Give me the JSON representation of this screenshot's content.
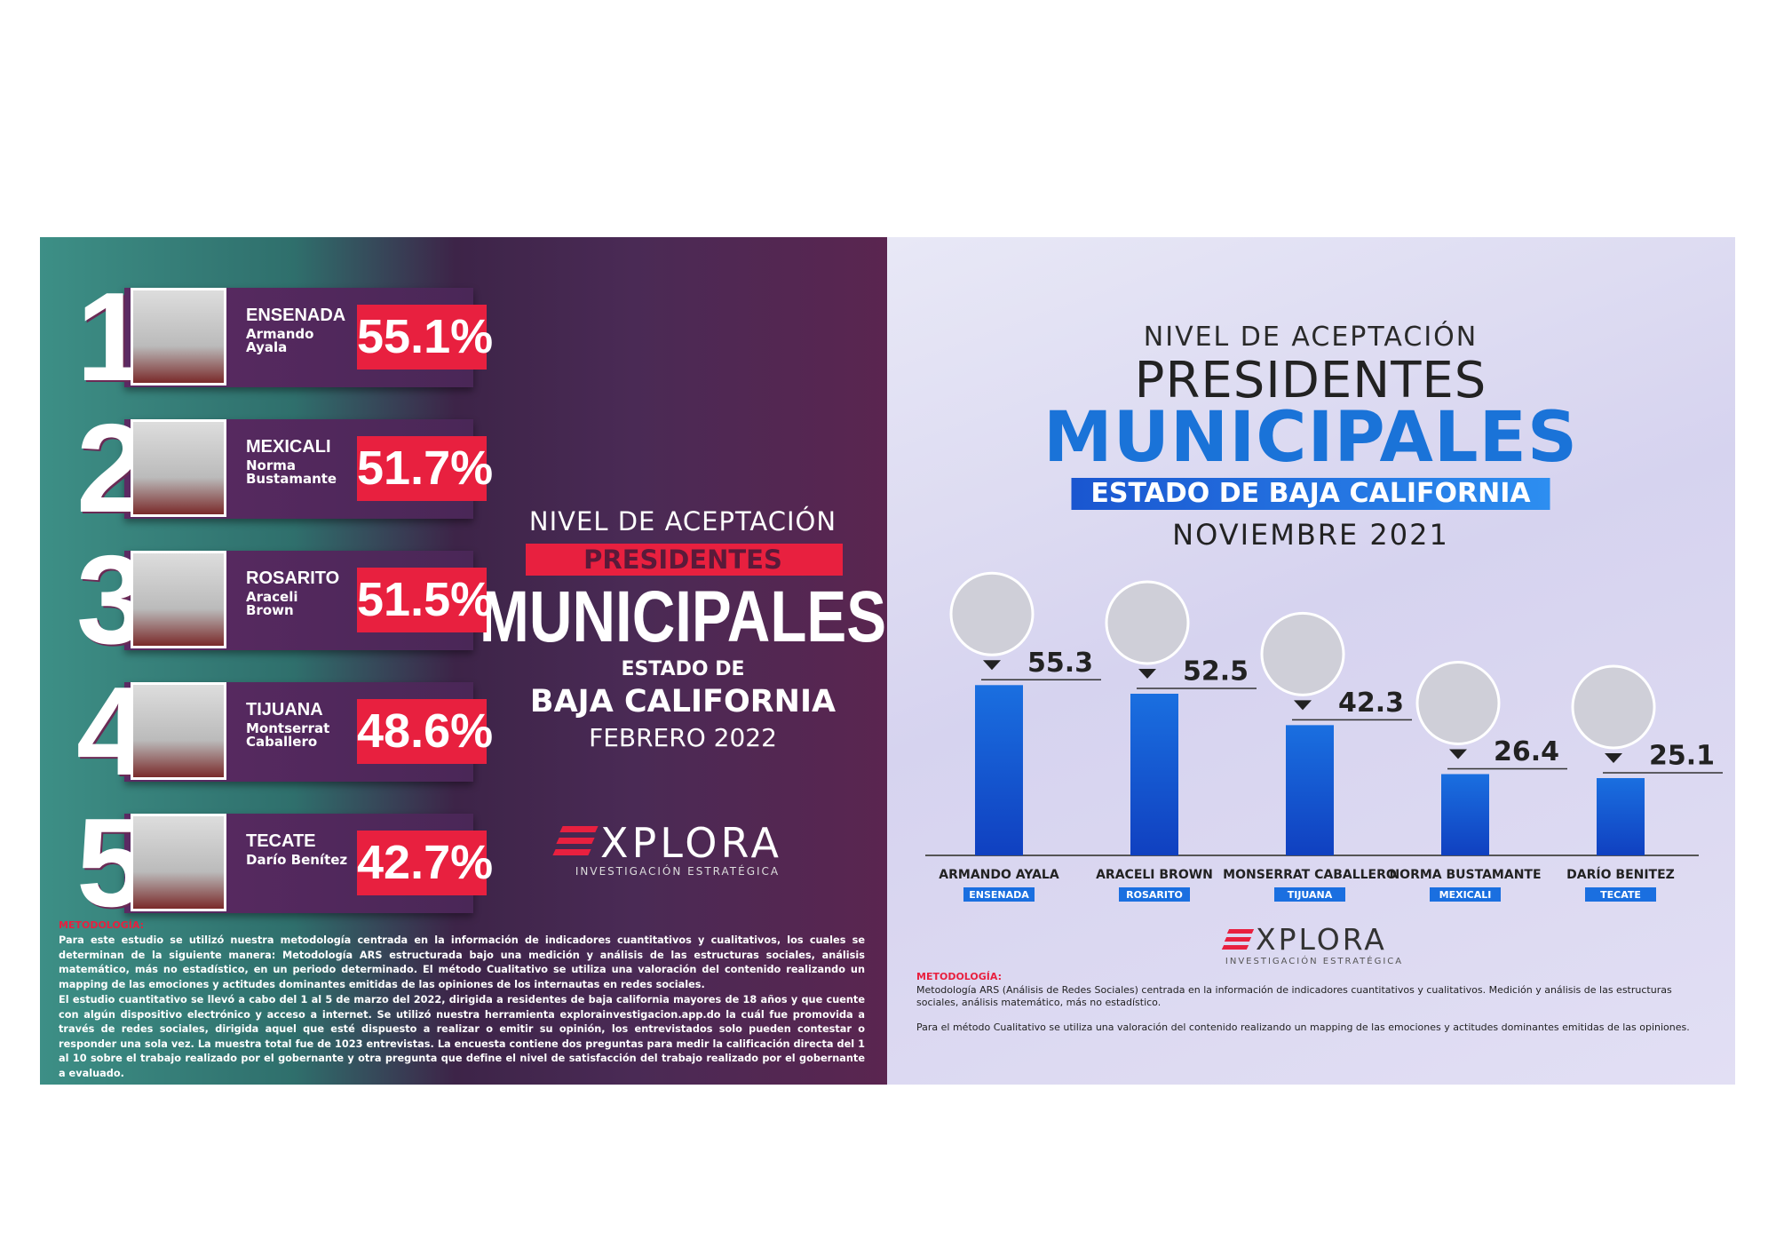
{
  "left_panel": {
    "ranking": [
      {
        "rank": "1",
        "city": "ENSENADA",
        "name": [
          "Armando",
          "Ayala"
        ],
        "value": "55.1%"
      },
      {
        "rank": "2",
        "city": "MEXICALI",
        "name": [
          "Norma",
          "Bustamante"
        ],
        "value": "51.7%"
      },
      {
        "rank": "3",
        "city": "ROSARITO",
        "name": [
          "Araceli",
          "Brown"
        ],
        "value": "51.5%"
      },
      {
        "rank": "4",
        "city": "TIJUANA",
        "name": [
          "Montserrat",
          "Caballero"
        ],
        "value": "48.6%"
      },
      {
        "rank": "5",
        "city": "TECATE",
        "name": [
          "Darío Benítez"
        ],
        "value": "42.7%"
      }
    ],
    "heading": {
      "kicker": "NIVEL DE ACEPTACIÓN",
      "title": "PRESIDENTES",
      "title2": "MUNICIPALES",
      "state_prefix": "ESTADO DE",
      "state": "BAJA CALIFORNIA",
      "date": "FEBRERO 2022"
    },
    "logo": "XPLORA",
    "logo_tagline": "INVESTIGACIÓN ESTRATÉGICA",
    "methodology_label": "METODOLOGÍA:",
    "methodology": [
      "Para este estudio se utilizó nuestra metodología centrada en la información de indicadores cuantitativos y cualitativos, los cuales se determinan de la siguiente manera: Metodología ARS estructurada bajo una medición y análisis de las estructuras sociales, análisis matemático, más no estadístico, en un periodo determinado. El método Cualitativo se utiliza una valoración del contenido realizando un mapping de las emociones y actitudes dominantes emitidas de las opiniones de los internautas en redes sociales.",
      "El estudio cuantitativo se llevó a cabo del 1 al 5 de marzo del 2022, dirigida a residentes de baja california mayores de 18 años y que cuente con algún dispositivo electrónico y acceso a internet. Se utilizó nuestra herramienta explorainvestigacion.app.do la cuál fue promovida a través de redes sociales, dirigida aquel que esté dispuesto a realizar o emitir su opinión, los entrevistados solo pueden contestar o responder una sola vez. La muestra total fue de 1023 entrevistas. La encuesta contiene dos preguntas para medir la calificación directa del 1 al 10 sobre el trabajo realizado por el gobernante y otra pregunta que define el nivel de satisfacción del trabajo realizado por el gobernante a evaluado."
    ]
  },
  "chart_data": {
    "type": "bar",
    "kicker": "NIVEL DE ACEPTACIÓN",
    "title": "PRESIDENTES",
    "title2": "MUNICIPALES",
    "subtitle": "ESTADO DE BAJA CALIFORNIA",
    "date": "NOVIEMBRE 2021",
    "categories": [
      "ARMANDO AYALA",
      "ARACELI BROWN",
      "MONSERRAT CABALLERO",
      "NORMA BUSTAMANTE",
      "DARÍO BENITEZ"
    ],
    "cities": [
      "ENSENADA",
      "ROSARITO",
      "TIJUANA",
      "MEXICALI",
      "TECATE"
    ],
    "values": [
      55.3,
      52.5,
      42.3,
      26.4,
      25.1
    ],
    "ylim": [
      0,
      60
    ],
    "color": "#1a6fe0",
    "logo": "XPLORA",
    "logo_tagline": "INVESTIGACIÓN ESTRATÉGICA",
    "methodology_label": "METODOLOGÍA:",
    "methodology": [
      "Metodología ARS (Análisis de Redes Sociales) centrada en la información de indicadores cuantitativos y cualitativos. Medición y análisis de las estructuras sociales, análisis matemático, más no estadístico.",
      "Para el método Cualitativo se utiliza una valoración del contenido realizando un mapping de las emociones y actitudes dominantes emitidas de las opiniones."
    ]
  }
}
